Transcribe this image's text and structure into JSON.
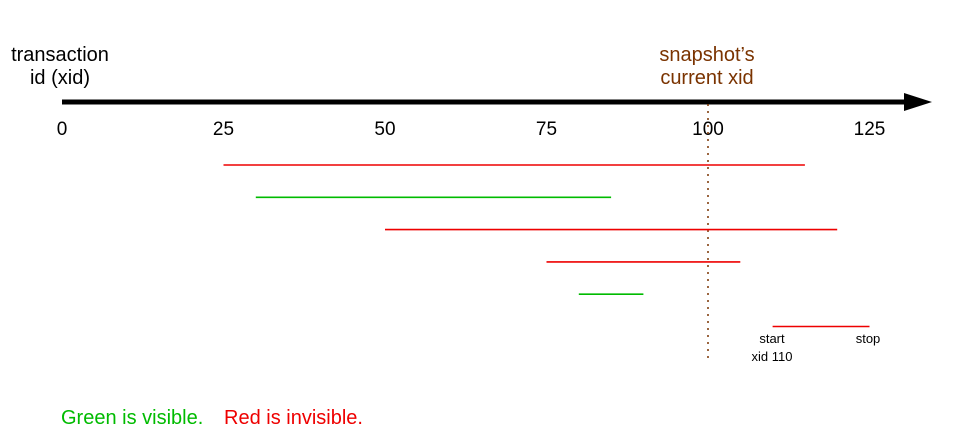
{
  "axis": {
    "title_line1": "transaction",
    "title_line2": "id (xid)",
    "ticks": [
      0,
      25,
      50,
      75,
      100,
      125
    ],
    "tick_labels": [
      "0",
      "25",
      "50",
      "75",
      "100",
      "125"
    ]
  },
  "snapshot": {
    "label_line1": "snapshot’s",
    "label_line2": "current xid",
    "xid": 100,
    "color": "#7a3300"
  },
  "transactions": [
    {
      "start": 25,
      "stop": 115,
      "visible": false
    },
    {
      "start": 30,
      "stop": 85,
      "visible": true
    },
    {
      "start": 50,
      "stop": 120,
      "visible": false
    },
    {
      "start": 75,
      "stop": 105,
      "visible": false
    },
    {
      "start": 80,
      "stop": 90,
      "visible": true
    },
    {
      "start": 110,
      "stop": 125,
      "visible": false
    }
  ],
  "annotation": {
    "start_label": "start",
    "xid_label": "xid 110",
    "stop_label": "stop"
  },
  "legend": {
    "visible_text": "Green is visible.",
    "invisible_text": "Red is invisible."
  },
  "colors": {
    "visible": "#00bb00",
    "invisible": "#ee0000",
    "axis": "#000000"
  }
}
